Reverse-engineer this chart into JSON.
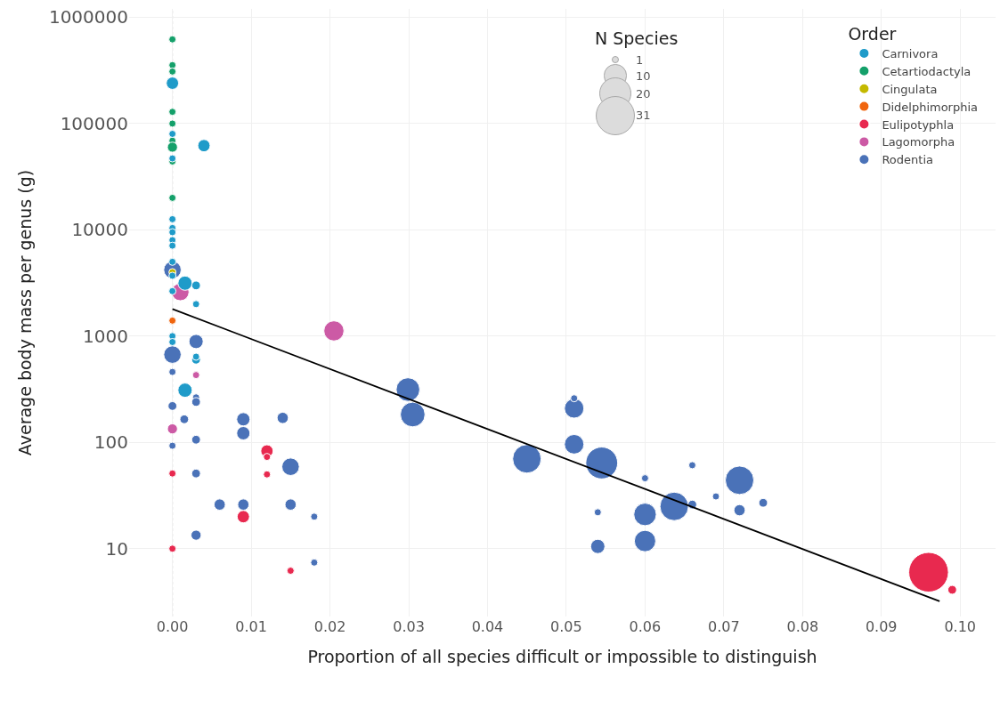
{
  "chart_data": {
    "type": "bubble",
    "xlabel": "Proportion of all species difficult or impossible to distinguish",
    "ylabel": "Average body mass per genus (g)",
    "legend_title": "Order",
    "legend": "top right",
    "grid": true,
    "log": "y",
    "marker": "circle",
    "xlim": [
      -0.0055,
      0.1045
    ],
    "xticks": [
      {
        "value": 0,
        "label": "0.00"
      },
      {
        "value": 0.01,
        "label": "0.01"
      },
      {
        "value": 0.02,
        "label": "0.02"
      },
      {
        "value": 0.03,
        "label": "0.03"
      },
      {
        "value": 0.04,
        "label": "0.04"
      },
      {
        "value": 0.05,
        "label": "0.05"
      },
      {
        "value": 0.06,
        "label": "0.06"
      },
      {
        "value": 0.07,
        "label": "0.07"
      },
      {
        "value": 0.08,
        "label": "0.08"
      },
      {
        "value": 0.09,
        "label": "0.09"
      },
      {
        "value": 0.1,
        "label": "0.10"
      }
    ],
    "ylim": [
      2.3,
      1200000
    ],
    "yticks": [
      10,
      100,
      1000,
      10000,
      100000,
      1000000
    ],
    "size_legend": [
      1,
      10,
      20,
      31
    ],
    "annotations": [
      "N Species"
    ],
    "ref_lines": [
      {
        "axis": "x",
        "value": 0,
        "color": "#b0b0b0",
        "line_style": "dotted"
      }
    ],
    "series": [
      {
        "name": "Carnivora",
        "color": "#1f9bc9",
        "x": [
          0,
          0.004,
          0,
          0,
          0,
          0,
          0,
          0,
          0,
          0,
          0,
          0.0016,
          0.003,
          0,
          0.003,
          0,
          0,
          0.003,
          0.003,
          0.0016
        ],
        "values": [
          240000,
          62000,
          80000,
          47000,
          12600,
          10400,
          9500,
          8000,
          7100,
          5000,
          3700,
          3150,
          3000,
          2650,
          2000,
          1000,
          880,
          600,
          640,
          310
        ],
        "sizes": [
          3,
          3,
          1,
          1,
          1,
          1,
          1,
          1,
          1,
          1,
          1,
          4,
          1.5,
          1,
          1,
          1,
          1,
          1.5,
          1,
          4
        ]
      },
      {
        "name": "Cetartiodactyla",
        "color": "#14a06a",
        "x": [
          0,
          0,
          0,
          0,
          0,
          0,
          0,
          0,
          0
        ],
        "values": [
          620000,
          355000,
          309000,
          129000,
          100000,
          69000,
          60000,
          44000,
          20000
        ],
        "sizes": [
          1,
          1,
          1,
          1,
          1,
          1,
          2,
          1,
          1
        ]
      },
      {
        "name": "Cingulata",
        "color": "#c4b900",
        "x": [
          0
        ],
        "values": [
          4000
        ],
        "sizes": [
          1
        ]
      },
      {
        "name": "Didelphimorphia",
        "color": "#f0650e",
        "x": [
          0
        ],
        "values": [
          1400
        ],
        "sizes": [
          1
        ]
      },
      {
        "name": "Eulipotyphla",
        "color": "#e8294f",
        "x": [
          0,
          0,
          0.012,
          0.012,
          0.012,
          0.009,
          0.015,
          0.096,
          0.099
        ],
        "values": [
          51,
          10,
          83,
          73,
          50,
          20,
          6.2,
          6,
          4.1
        ],
        "sizes": [
          1,
          1,
          3,
          1,
          1,
          3,
          1,
          31,
          1.5
        ]
      },
      {
        "name": "Lagomorpha",
        "color": "#cc5aa5",
        "x": [
          0.001,
          0.003,
          0,
          0.0205
        ],
        "values": [
          2600,
          430,
          134,
          1120
        ],
        "sizes": [
          6,
          1,
          2,
          8
        ]
      },
      {
        "name": "Rodentia",
        "color": "#4a72b8",
        "x": [
          0,
          0.003,
          0,
          0,
          0.003,
          0.003,
          0,
          0.0015,
          0.009,
          0.009,
          0.014,
          0.003,
          0,
          0.015,
          0.003,
          0.006,
          0.009,
          0.015,
          0.018,
          0.003,
          0.018,
          0.0299,
          0.0305,
          0.045,
          0.051,
          0.051,
          0.051,
          0.0545,
          0.06,
          0.054,
          0.06,
          0.054,
          0.06,
          0.066,
          0.0637,
          0.066,
          0.069,
          0.072,
          0.072,
          0.075
        ],
        "values": [
          4200,
          890,
          670,
          460,
          265,
          240,
          220,
          165,
          165,
          122,
          170,
          106,
          93,
          59,
          51,
          26,
          26,
          26,
          20,
          13.4,
          7.4,
          314,
          183,
          70,
          209,
          260,
          96,
          64,
          46,
          22,
          21,
          10.5,
          11.8,
          61,
          25,
          26,
          31,
          44,
          23,
          27
        ],
        "sizes": [
          6,
          4,
          6,
          1,
          1,
          1.5,
          1.5,
          1.5,
          3.5,
          3.5,
          2.5,
          1.5,
          1,
          6,
          1.5,
          2.5,
          2.5,
          2.5,
          1,
          2,
          1,
          11,
          12,
          16,
          7.5,
          1,
          7.5,
          20,
          1,
          1,
          10,
          4,
          9,
          1,
          16,
          1.5,
          1,
          16,
          2.5,
          1.5
        ]
      },
      {
        "type": "line",
        "marker": "none",
        "color": "#000000",
        "x": [
          0,
          0.0974
        ],
        "values": [
          1800,
          3.2
        ]
      }
    ]
  }
}
